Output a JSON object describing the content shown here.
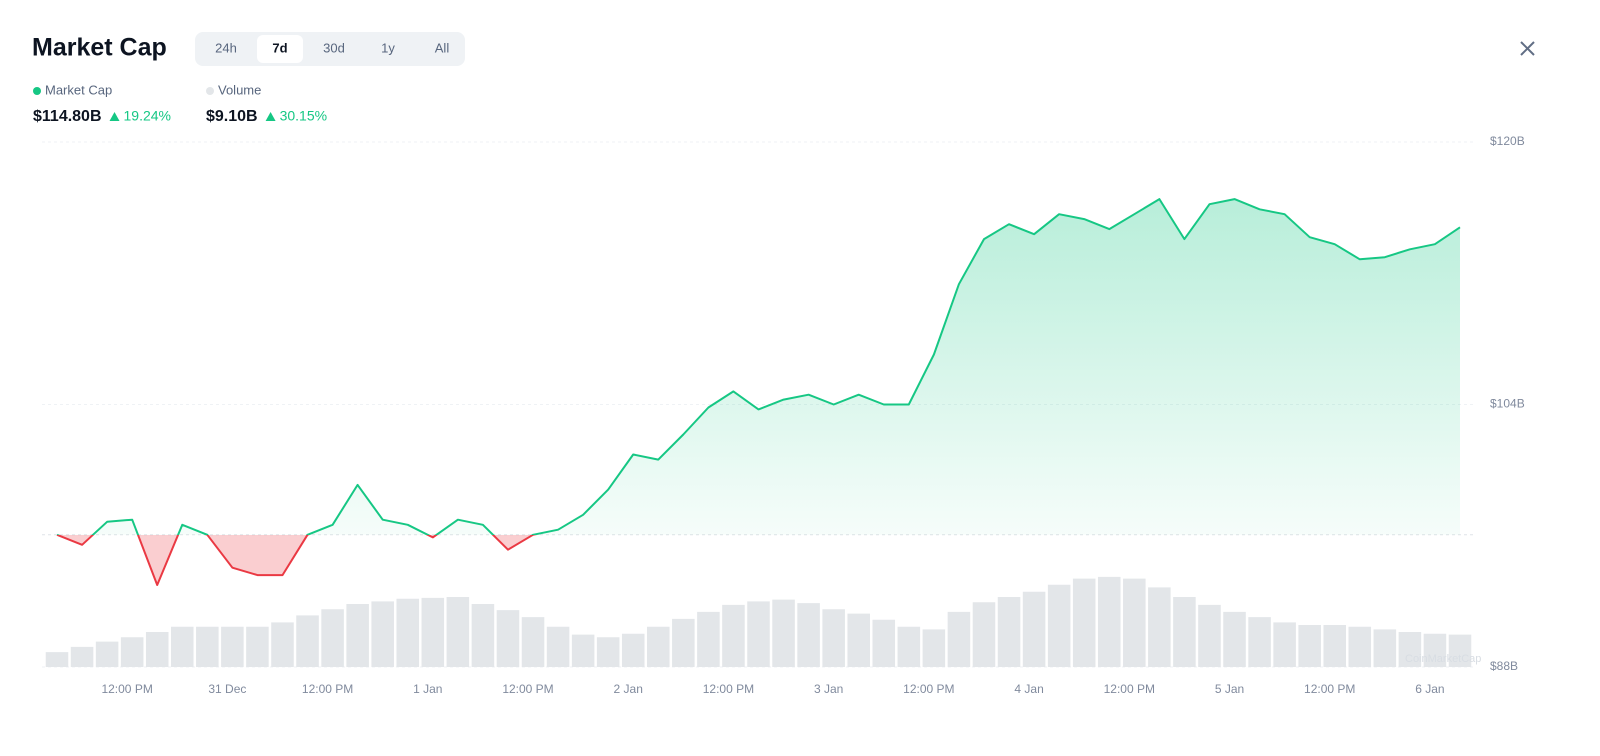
{
  "header": {
    "title": "Market Cap",
    "tabs": [
      "24h",
      "7d",
      "30d",
      "1y",
      "All"
    ],
    "active_tab": 1
  },
  "summary": [
    {
      "value": "$114.80B",
      "change": "19.24%"
    },
    {
      "value": "$9.10B",
      "change": "30.15%"
    }
  ],
  "watermark": "CoinMarketCap",
  "chart_data": {
    "type": "line",
    "x": [
      0,
      3,
      6,
      9,
      12,
      15,
      18,
      21,
      24,
      27,
      30,
      33,
      36,
      39,
      42,
      45,
      48,
      51,
      54,
      57,
      60,
      63,
      66,
      69,
      72,
      75,
      78,
      81,
      84,
      87,
      90,
      93,
      96,
      99,
      102,
      105,
      108,
      111,
      114,
      117,
      120,
      123,
      126,
      129,
      132,
      135,
      138,
      141,
      144,
      147,
      150,
      153,
      156,
      159,
      162,
      165,
      168
    ],
    "xlim": [
      0,
      168
    ],
    "xticks": [
      {
        "value": 8.4,
        "label": "12:00 PM"
      },
      {
        "value": 20.4,
        "label": "31 Dec"
      },
      {
        "value": 32.4,
        "label": "12:00 PM"
      },
      {
        "value": 44.4,
        "label": "1 Jan"
      },
      {
        "value": 56.4,
        "label": "12:00 PM"
      },
      {
        "value": 68.4,
        "label": "2 Jan"
      },
      {
        "value": 80.4,
        "label": "12:00 PM"
      },
      {
        "value": 92.4,
        "label": "3 Jan"
      },
      {
        "value": 104.4,
        "label": "12:00 PM"
      },
      {
        "value": 116.4,
        "label": "4 Jan"
      },
      {
        "value": 128.4,
        "label": "12:00 PM"
      },
      {
        "value": 140.4,
        "label": "5 Jan"
      },
      {
        "value": 152.4,
        "label": "12:00 PM"
      },
      {
        "value": 164.4,
        "label": "6 Jan"
      }
    ],
    "ylim": [
      88,
      120
    ],
    "yticks": [
      {
        "value": 88,
        "label": "$88B"
      },
      {
        "value": 104,
        "label": "$104B"
      },
      {
        "value": 120,
        "label": "$120B"
      }
    ],
    "y2lim": [
      0,
      60
    ],
    "grid": true,
    "series": [
      {
        "name": "Market Cap",
        "color": "#16c784",
        "down_color": "#ea3943",
        "values": [
          96.06,
          95.45,
          96.85,
          96.98,
          93.0,
          96.67,
          96.06,
          94.05,
          93.6,
          93.6,
          96.06,
          96.67,
          99.1,
          96.98,
          96.67,
          95.9,
          96.98,
          96.67,
          95.15,
          96.06,
          96.37,
          97.28,
          98.81,
          100.95,
          100.64,
          102.17,
          103.82,
          104.8,
          103.7,
          104.3,
          104.6,
          104.0,
          104.6,
          104.0,
          104.0,
          107.05,
          111.33,
          114.08,
          114.99,
          114.38,
          115.6,
          115.3,
          114.69,
          115.6,
          116.52,
          114.08,
          116.21,
          116.52,
          115.9,
          115.6,
          114.2,
          113.77,
          112.85,
          112.98,
          113.46,
          113.77,
          114.8
        ]
      },
      {
        "name": "Volume",
        "color": "#e3e6e9",
        "axis": "y2",
        "type": "bar",
        "values": [
          1.7,
          2.3,
          2.9,
          3.4,
          4.0,
          4.6,
          4.6,
          4.6,
          4.6,
          5.1,
          5.9,
          6.6,
          7.2,
          7.5,
          7.8,
          7.9,
          8.0,
          7.2,
          6.5,
          5.7,
          4.6,
          3.7,
          3.4,
          3.8,
          4.6,
          5.5,
          6.3,
          7.1,
          7.5,
          7.7,
          7.3,
          6.6,
          6.1,
          5.4,
          4.6,
          4.3,
          6.3,
          7.4,
          8.0,
          8.6,
          9.4,
          10.1,
          10.3,
          10.1,
          9.1,
          8.0,
          7.1,
          6.3,
          5.7,
          5.1,
          4.8,
          4.8,
          4.6,
          4.3,
          4.0,
          3.8,
          3.7
        ]
      }
    ]
  }
}
